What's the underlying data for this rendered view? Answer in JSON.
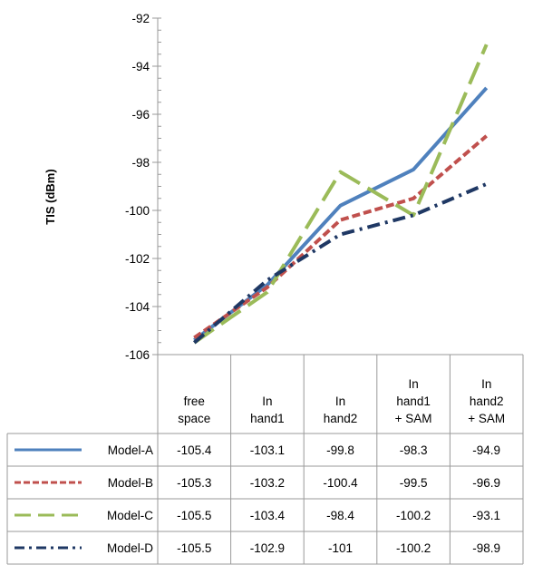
{
  "chart_data": {
    "type": "line",
    "title": "",
    "xlabel": "",
    "ylabel": "TIS (dBm)",
    "ylim": [
      -106,
      -92
    ],
    "yticks": [
      "-92",
      "-94",
      "-96",
      "-98",
      "-100",
      "-102",
      "-104",
      "-106"
    ],
    "categories": [
      [
        "free",
        "space"
      ],
      [
        "In",
        "hand1"
      ],
      [
        "In",
        "hand2"
      ],
      [
        "In",
        "hand1",
        "+ SAM"
      ],
      [
        "In",
        "hand2",
        "+ SAM"
      ]
    ],
    "series": [
      {
        "name": "Model-A",
        "color": "#4f81bd",
        "dash": "solid",
        "values": [
          -105.4,
          -103.1,
          -99.8,
          -98.3,
          -94.9
        ],
        "labels": [
          "-105.4",
          "-103.1",
          "-99.8",
          "-98.3",
          "-94.9"
        ]
      },
      {
        "name": "Model-B",
        "color": "#c0504d",
        "dash": "dash",
        "values": [
          -105.3,
          -103.2,
          -100.4,
          -99.5,
          -96.9
        ],
        "labels": [
          "-105.3",
          "-103.2",
          "-100.4",
          "-99.5",
          "-96.9"
        ]
      },
      {
        "name": "Model-C",
        "color": "#9bbb59",
        "dash": "longdash",
        "values": [
          -105.5,
          -103.4,
          -98.4,
          -100.2,
          -93.1
        ],
        "labels": [
          "-105.5",
          "-103.4",
          "-98.4",
          "-100.2",
          "-93.1"
        ]
      },
      {
        "name": "Model-D",
        "color": "#1f3864",
        "dash": "dashdot",
        "values": [
          -105.5,
          -102.9,
          -101,
          -100.2,
          -98.9
        ],
        "labels": [
          "-105.5",
          "-102.9",
          "-101",
          "-100.2",
          "-98.9"
        ]
      }
    ],
    "legend": "data-table",
    "grid": "horizontal-none"
  }
}
